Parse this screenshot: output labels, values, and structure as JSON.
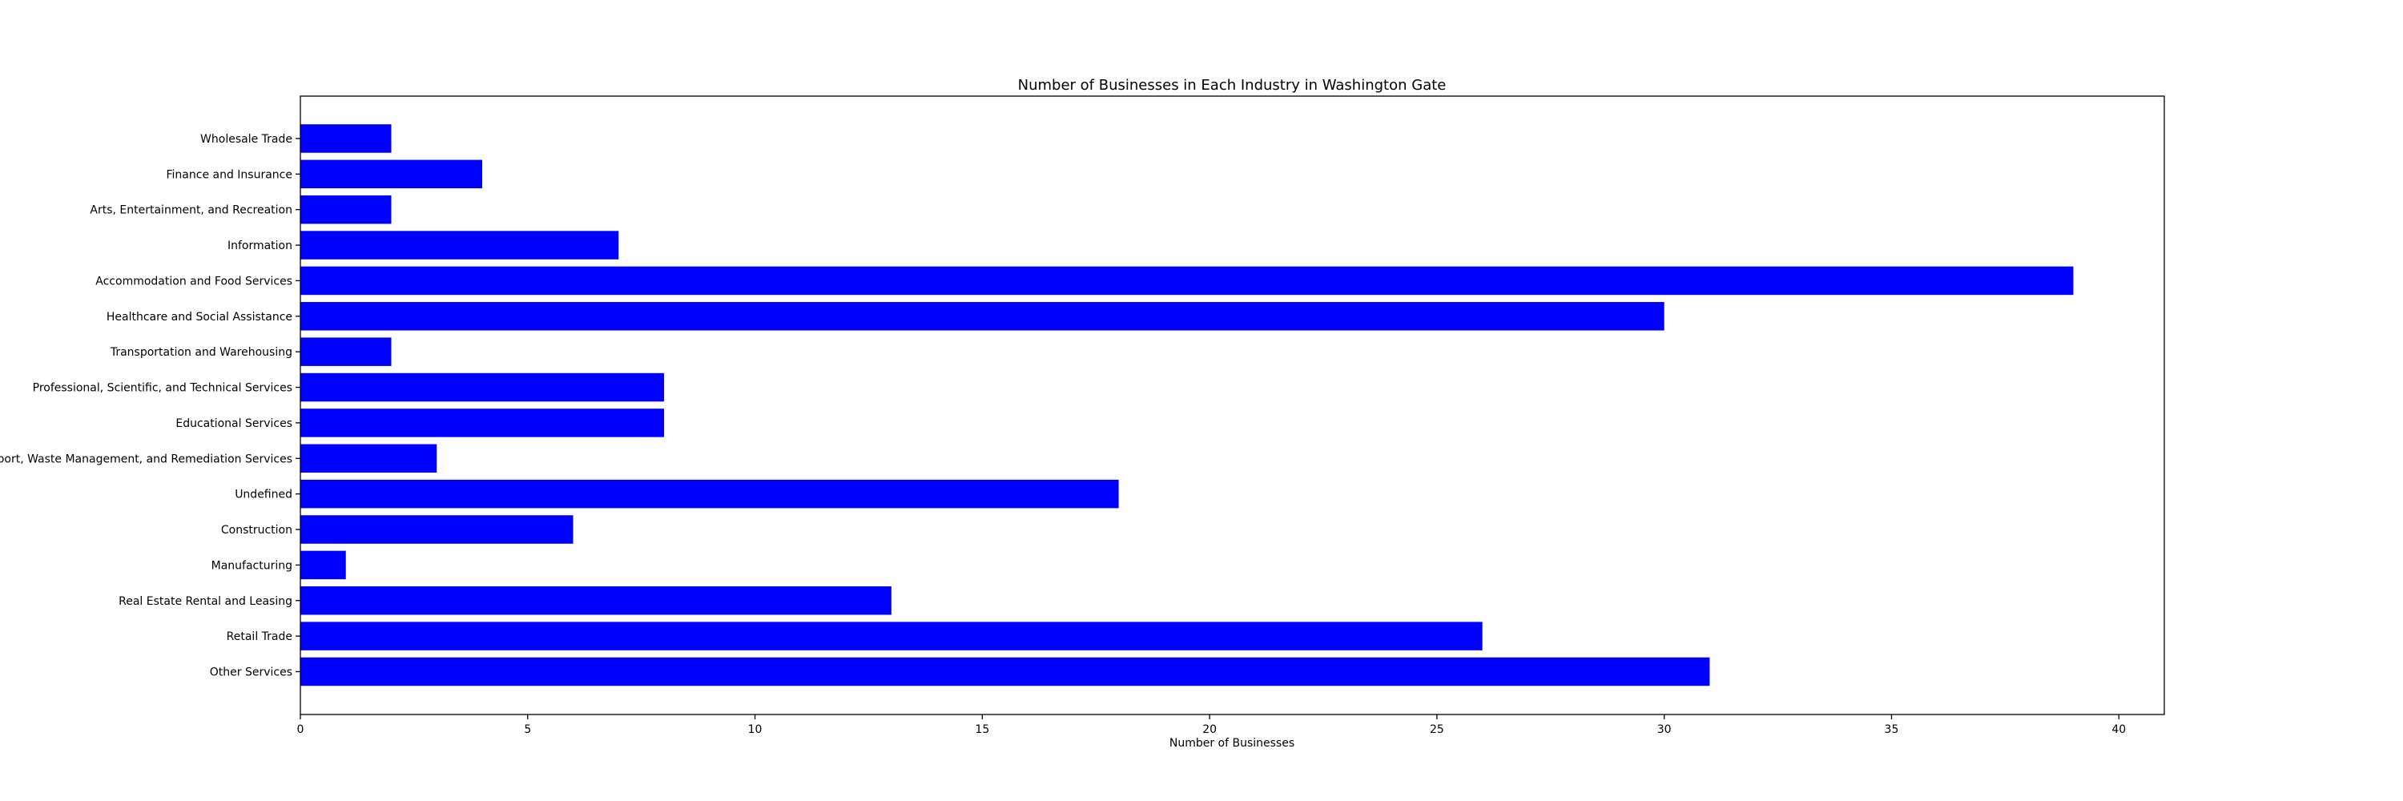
{
  "chart_data": {
    "type": "bar",
    "orientation": "horizontal",
    "title": "Number of Businesses in Each Industry in Washington Gate",
    "xlabel": "Number of Businesses",
    "ylabel": "",
    "categories": [
      "Other Services",
      "Retail Trade",
      "Real Estate Rental and Leasing",
      "Manufacturing",
      "Construction",
      "Undefined",
      "Administrative and Support, Waste Management, and Remediation Services",
      "Educational Services",
      "Professional, Scientific, and Technical Services",
      "Transportation and Warehousing",
      "Healthcare and Social Assistance",
      "Accommodation and Food Services",
      "Information",
      "Arts, Entertainment, and Recreation",
      "Finance and Insurance",
      "Wholesale Trade"
    ],
    "values": [
      31,
      26,
      13,
      1,
      6,
      18,
      3,
      8,
      8,
      2,
      30,
      39,
      7,
      2,
      4,
      2
    ],
    "xlim": [
      0,
      41
    ],
    "xticks": [
      0,
      5,
      10,
      15,
      20,
      25,
      30,
      35,
      40
    ],
    "bar_color": "#0000ff",
    "grid": false,
    "legend": "none"
  }
}
